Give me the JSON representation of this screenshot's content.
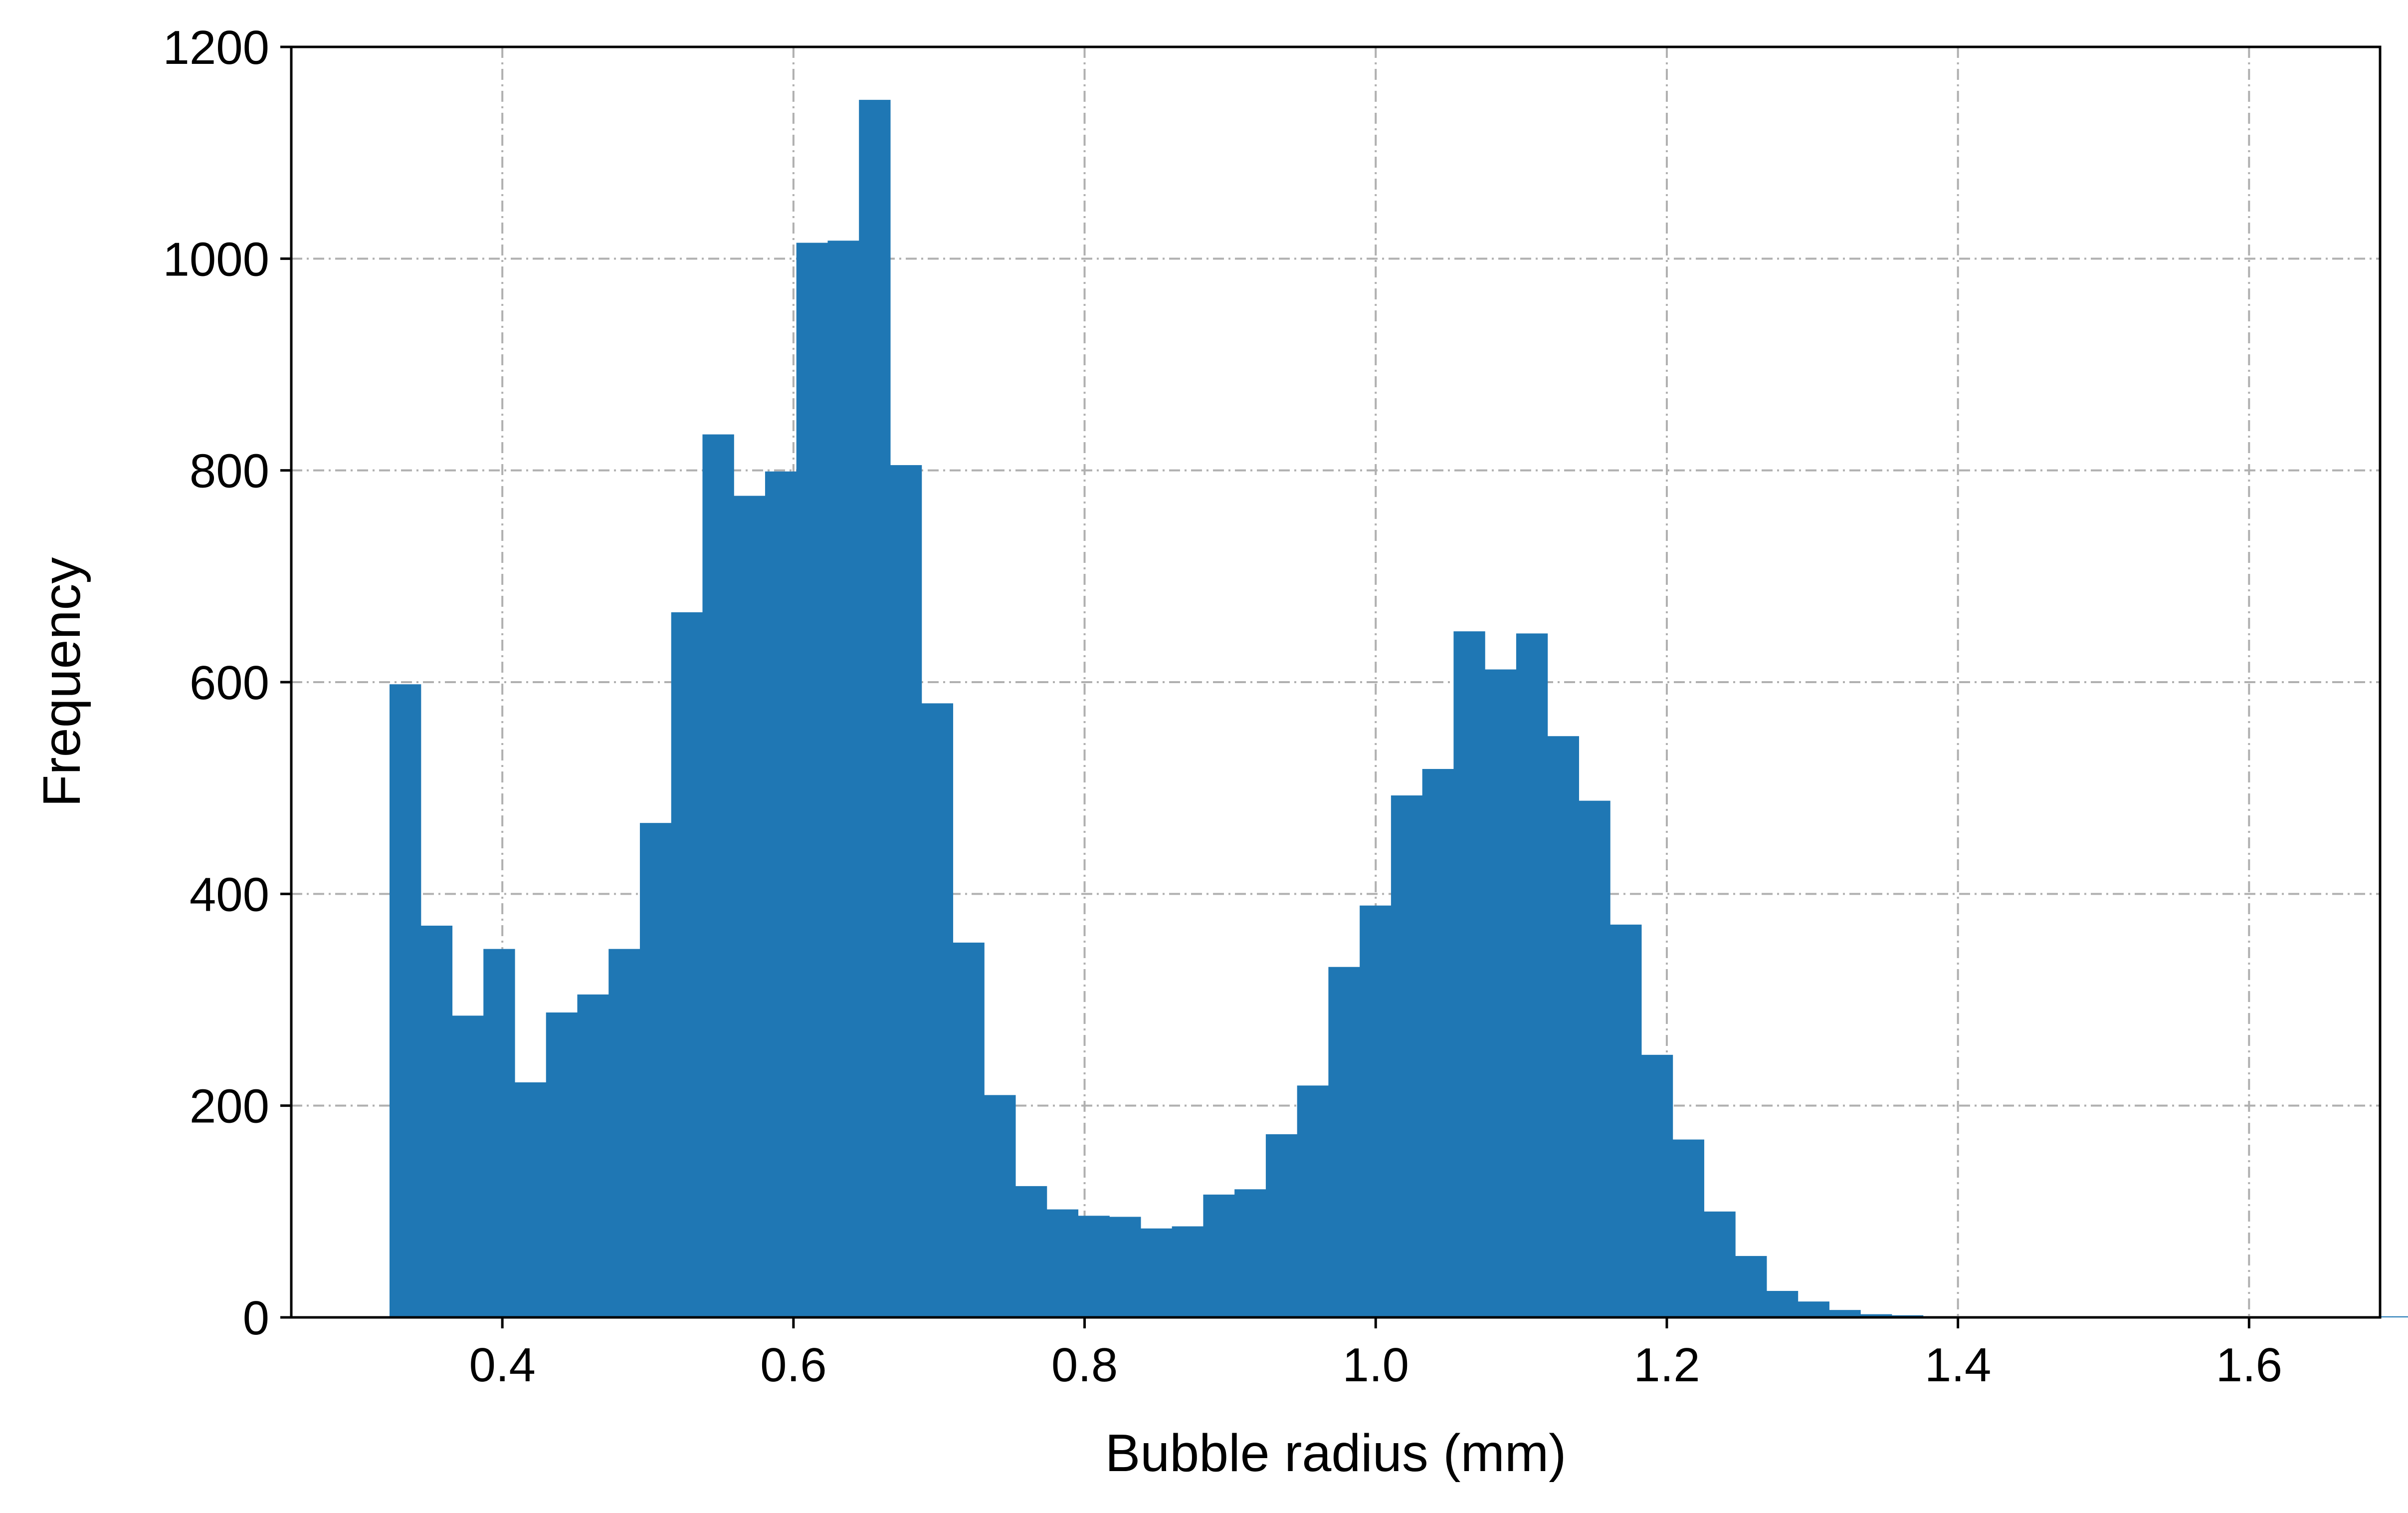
{
  "chart_data": {
    "type": "bar",
    "title": "",
    "xlabel": "Bubble radius (mm)",
    "ylabel": "Frequency",
    "xlim": [
      0.255,
      1.69
    ],
    "ylim": [
      0,
      1200
    ],
    "xticks": [
      0.4,
      0.6,
      0.8,
      1.0,
      1.2,
      1.4,
      1.6
    ],
    "xtick_labels": [
      "0.4",
      "0.6",
      "0.8",
      "1.0",
      "1.2",
      "1.4",
      "1.6"
    ],
    "yticks": [
      0,
      200,
      400,
      600,
      800,
      1000,
      1200
    ],
    "ytick_labels": [
      "0",
      "200",
      "400",
      "600",
      "800",
      "1000",
      "1200"
    ],
    "grid": true,
    "bar_color": "#1f77b4",
    "grid_color": "#b0b0b0",
    "bin_width": 0.0215,
    "bin_start": 0.3225,
    "values": [
      598,
      370,
      285,
      348,
      222,
      288,
      305,
      348,
      467,
      666,
      834,
      776,
      799,
      1015,
      1017,
      1150,
      805,
      580,
      354,
      210,
      124,
      102,
      96,
      95,
      84,
      86,
      116,
      121,
      173,
      219,
      331,
      389,
      493,
      518,
      648,
      612,
      646,
      549,
      488,
      371,
      248,
      168,
      100,
      58,
      25,
      15,
      7,
      3,
      2,
      1,
      1,
      1,
      1,
      1,
      1,
      1,
      1,
      1,
      1,
      1,
      1,
      1,
      1,
      1,
      1
    ]
  }
}
